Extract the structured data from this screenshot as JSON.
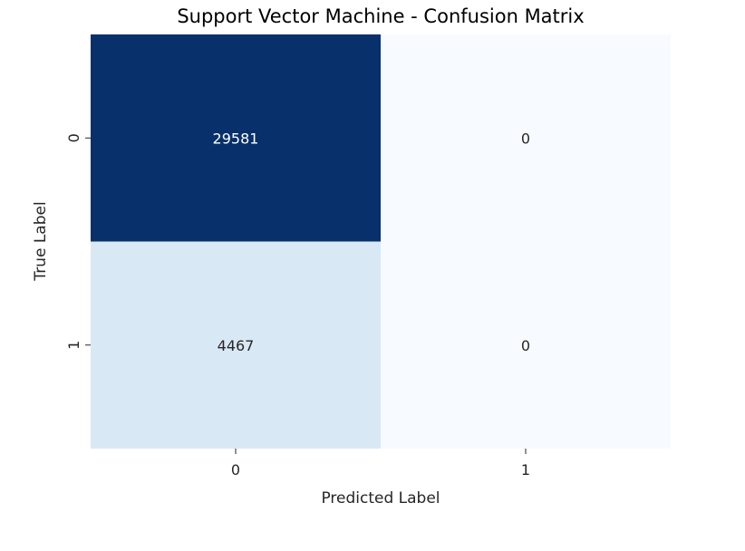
{
  "chart_data": {
    "type": "heatmap",
    "title": "Support Vector Machine - Confusion Matrix",
    "xlabel": "Predicted Label",
    "ylabel": "True Label",
    "x_categories": [
      "0",
      "1"
    ],
    "y_categories": [
      "0",
      "1"
    ],
    "values": [
      [
        29581,
        0
      ],
      [
        4467,
        0
      ]
    ],
    "colormap": "Blues",
    "color_low": "#f7fbff",
    "color_high": "#08306b",
    "colorbar": false,
    "grid": false
  }
}
